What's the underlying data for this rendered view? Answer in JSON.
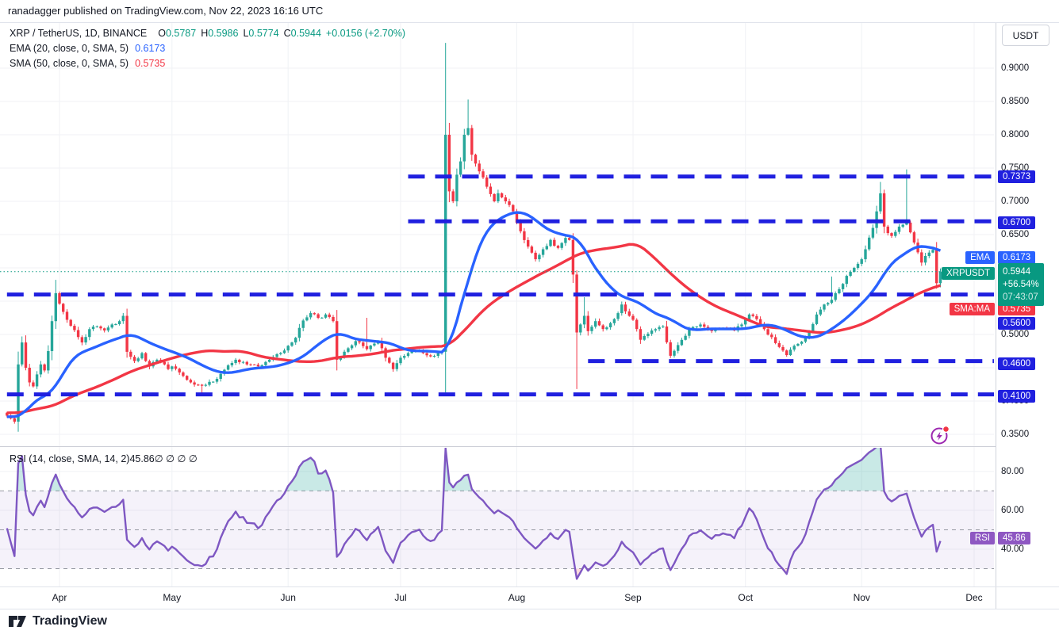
{
  "header": {
    "attribution": "ranadagger published on TradingView.com, Nov 22, 2023 16:16 UTC"
  },
  "legend": {
    "symbol": "XRP / TetherUS, 1D, BINANCE",
    "open_label": "O",
    "open": "0.5787",
    "high_label": "H",
    "high": "0.5986",
    "low_label": "L",
    "low": "0.5774",
    "close_label": "C",
    "close": "0.5944",
    "change": "+0.0156 (+2.70%)",
    "ema_label": "EMA (20, close, 0, SMA, 5)",
    "ema_value": "0.6173",
    "sma_label": "SMA (50, close, 0, SMA, 5)",
    "sma_value": "0.5735"
  },
  "rsi_legend": {
    "label": "RSI (14, close, SMA, 14, 2)",
    "value": "45.86",
    "hidden": "∅ ∅ ∅ ∅"
  },
  "price_axis": {
    "currency_button": "USDT",
    "ticks": [
      {
        "label": "0.9000",
        "value": 0.9
      },
      {
        "label": "0.8500",
        "value": 0.85
      },
      {
        "label": "0.8000",
        "value": 0.8
      },
      {
        "label": "0.7500",
        "value": 0.75
      },
      {
        "label": "0.7000",
        "value": 0.7
      },
      {
        "label": "0.6500",
        "value": 0.65
      },
      {
        "label": "0.6000",
        "value": 0.6
      },
      {
        "label": "0.5000",
        "value": 0.5
      },
      {
        "label": "0.4500",
        "value": 0.45
      },
      {
        "label": "0.4000",
        "value": 0.4
      },
      {
        "label": "0.3500",
        "value": 0.35
      }
    ],
    "level_badges": [
      {
        "label": "0.7373",
        "value": 0.7373,
        "dy": 0
      },
      {
        "label": "0.6700",
        "value": 0.67,
        "dy": 2
      },
      {
        "label": "0.5600",
        "value": 0.56,
        "dy": 36
      },
      {
        "label": "0.4600",
        "value": 0.46,
        "dy": 3
      },
      {
        "label": "0.4100",
        "value": 0.41,
        "dy": 2
      }
    ],
    "ema_badge": {
      "tag": "EMA",
      "label": "0.6173",
      "value": 0.6173,
      "dy": 2
    },
    "sma_badge": {
      "tag": "SMA:MA",
      "label": "0.5735",
      "value": 0.5735,
      "dy": 30
    },
    "symbol_badge": {
      "tag": "XRPUSDT",
      "price": "0.5944",
      "value": 0.5944,
      "change_pct": "+56.54%",
      "countdown": "07:43:07",
      "dy": 16
    },
    "rsi_badge": {
      "tag": "RSI",
      "label": "45.86",
      "value": 45.86
    }
  },
  "rsi_axis": {
    "ticks": [
      {
        "label": "80.00",
        "value": 80
      },
      {
        "label": "60.00",
        "value": 60
      },
      {
        "label": "40.00",
        "value": 40
      }
    ]
  },
  "footer": {
    "brand": "TradingView"
  },
  "colors": {
    "up": "#26a69a",
    "down": "#f23645",
    "ema": "#2962ff",
    "sma": "#f23645",
    "level_blue": "#2020df",
    "accent_teal": "#089981",
    "rsi_purple": "#7e57c2",
    "badge_purple": "#8e57c2",
    "grid": "#f0f2f5",
    "band_fill": "rgba(126,87,194,0.08)",
    "rsi_dash": "#9598a1",
    "icon_purple": "#9c27b0",
    "dot_red": "#f23645"
  },
  "chart_data": {
    "type": "candlestick",
    "symbol": "XRPUSDT",
    "exchange": "BINANCE",
    "timeframe": "1D",
    "title": "XRP / TetherUS, 1D, BINANCE",
    "ylabel": "USDT",
    "ylim": [
      0.33,
      0.95
    ],
    "last_candle": {
      "open": 0.5787,
      "high": 0.5986,
      "low": 0.5774,
      "close": 0.5944,
      "change": 0.0156,
      "change_pct": 2.7
    },
    "ema20_last": 0.6173,
    "sma50_last": 0.5735,
    "rsi_last": 45.86,
    "n_days": 250,
    "months": [
      {
        "label": "Apr",
        "day": 14
      },
      {
        "label": "May",
        "day": 44
      },
      {
        "label": "Jun",
        "day": 75
      },
      {
        "label": "Jul",
        "day": 105
      },
      {
        "label": "Aug",
        "day": 136
      },
      {
        "label": "Sep",
        "day": 167
      },
      {
        "label": "Oct",
        "day": 197
      },
      {
        "label": "Nov",
        "day": 228
      },
      {
        "label": "Dec",
        "day": 258
      }
    ],
    "anchors": [
      [
        0,
        0.378
      ],
      [
        1,
        0.374
      ],
      [
        2,
        0.369
      ],
      [
        3,
        0.455
      ],
      [
        4,
        0.488
      ],
      [
        5,
        0.45
      ],
      [
        6,
        0.428
      ],
      [
        7,
        0.422
      ],
      [
        8,
        0.44
      ],
      [
        9,
        0.455
      ],
      [
        10,
        0.446
      ],
      [
        11,
        0.475
      ],
      [
        12,
        0.52
      ],
      [
        13,
        0.562
      ],
      [
        15,
        0.534
      ],
      [
        17,
        0.513
      ],
      [
        19,
        0.496
      ],
      [
        20,
        0.488
      ],
      [
        22,
        0.508
      ],
      [
        24,
        0.512
      ],
      [
        26,
        0.506
      ],
      [
        28,
        0.515
      ],
      [
        30,
        0.52
      ],
      [
        31,
        0.528
      ],
      [
        32,
        0.474
      ],
      [
        34,
        0.46
      ],
      [
        36,
        0.472
      ],
      [
        38,
        0.452
      ],
      [
        40,
        0.462
      ],
      [
        42,
        0.455
      ],
      [
        43,
        0.448
      ],
      [
        44,
        0.452
      ],
      [
        46,
        0.443
      ],
      [
        49,
        0.428
      ],
      [
        52,
        0.423
      ],
      [
        55,
        0.429
      ],
      [
        58,
        0.447
      ],
      [
        61,
        0.462
      ],
      [
        64,
        0.455
      ],
      [
        67,
        0.452
      ],
      [
        70,
        0.462
      ],
      [
        73,
        0.472
      ],
      [
        75,
        0.483
      ],
      [
        77,
        0.495
      ],
      [
        79,
        0.521
      ],
      [
        81,
        0.532
      ],
      [
        83,
        0.525
      ],
      [
        85,
        0.53
      ],
      [
        87,
        0.52
      ],
      [
        88,
        0.462
      ],
      [
        90,
        0.474
      ],
      [
        93,
        0.49
      ],
      [
        96,
        0.478
      ],
      [
        99,
        0.49
      ],
      [
        101,
        0.465
      ],
      [
        103,
        0.448
      ],
      [
        105,
        0.465
      ],
      [
        107,
        0.472
      ],
      [
        110,
        0.477
      ],
      [
        113,
        0.467
      ],
      [
        116,
        0.474
      ],
      [
        117,
        0.8
      ],
      [
        118,
        0.715
      ],
      [
        119,
        0.7
      ],
      [
        120,
        0.74
      ],
      [
        121,
        0.76
      ],
      [
        122,
        0.8
      ],
      [
        123,
        0.81
      ],
      [
        124,
        0.77
      ],
      [
        126,
        0.745
      ],
      [
        128,
        0.722
      ],
      [
        130,
        0.7
      ],
      [
        131,
        0.712
      ],
      [
        133,
        0.7
      ],
      [
        135,
        0.685
      ],
      [
        136,
        0.668
      ],
      [
        137,
        0.655
      ],
      [
        139,
        0.632
      ],
      [
        141,
        0.613
      ],
      [
        143,
        0.628
      ],
      [
        145,
        0.642
      ],
      [
        147,
        0.63
      ],
      [
        149,
        0.645
      ],
      [
        150,
        0.642
      ],
      [
        151,
        0.59
      ],
      [
        152,
        0.503
      ],
      [
        153,
        0.515
      ],
      [
        154,
        0.528
      ],
      [
        155,
        0.505
      ],
      [
        157,
        0.52
      ],
      [
        159,
        0.508
      ],
      [
        161,
        0.517
      ],
      [
        163,
        0.532
      ],
      [
        164,
        0.545
      ],
      [
        166,
        0.528
      ],
      [
        167,
        0.522
      ],
      [
        169,
        0.492
      ],
      [
        172,
        0.506
      ],
      [
        175,
        0.512
      ],
      [
        177,
        0.468
      ],
      [
        179,
        0.484
      ],
      [
        182,
        0.508
      ],
      [
        185,
        0.515
      ],
      [
        188,
        0.505
      ],
      [
        191,
        0.51
      ],
      [
        194,
        0.506
      ],
      [
        196,
        0.515
      ],
      [
        198,
        0.53
      ],
      [
        200,
        0.523
      ],
      [
        202,
        0.508
      ],
      [
        205,
        0.487
      ],
      [
        208,
        0.469
      ],
      [
        210,
        0.483
      ],
      [
        213,
        0.495
      ],
      [
        214,
        0.505
      ],
      [
        216,
        0.53
      ],
      [
        218,
        0.545
      ],
      [
        220,
        0.552
      ],
      [
        222,
        0.568
      ],
      [
        224,
        0.588
      ],
      [
        226,
        0.6
      ],
      [
        228,
        0.613
      ],
      [
        229,
        0.628
      ],
      [
        231,
        0.66
      ],
      [
        233,
        0.712
      ],
      [
        234,
        0.662
      ],
      [
        236,
        0.648
      ],
      [
        238,
        0.662
      ],
      [
        240,
        0.668
      ],
      [
        242,
        0.638
      ],
      [
        244,
        0.608
      ],
      [
        246,
        0.623
      ],
      [
        247,
        0.627
      ],
      [
        248,
        0.577
      ],
      [
        249,
        0.5944
      ]
    ],
    "wick_overrides": {
      "4": {
        "high": 0.497
      },
      "13": {
        "high": 0.582
      },
      "52": {
        "low": 0.409
      },
      "88": {
        "low": 0.446
      },
      "96": {
        "high": 0.525
      },
      "103": {
        "low": 0.444
      },
      "117": {
        "high": 0.938
      },
      "123": {
        "high": 0.853
      },
      "152": {
        "low": 0.418
      },
      "154": {
        "high": 0.556
      },
      "220": {
        "high": 0.587
      },
      "233": {
        "high": 0.729
      },
      "240": {
        "high": 0.748
      }
    },
    "levels": [
      {
        "price": 0.7373,
        "from_day": 107
      },
      {
        "price": 0.67,
        "from_day": 107
      },
      {
        "price": 0.56,
        "from_day": 0
      },
      {
        "price": 0.46,
        "from_day": 155
      },
      {
        "price": 0.41,
        "from_day": 0
      }
    ],
    "current_price": 0.5944,
    "indicators": {
      "ema_period": 20,
      "sma_period": 50,
      "ma_smoothing": 5,
      "rsi_period": 14
    },
    "rsi_bands": [
      70,
      50,
      30
    ],
    "price_grid": [
      0.9,
      0.85,
      0.8,
      0.75,
      0.7,
      0.65,
      0.6,
      0.55,
      0.5,
      0.45,
      0.4,
      0.35
    ],
    "rsi_grid": [
      80,
      60,
      40
    ]
  }
}
